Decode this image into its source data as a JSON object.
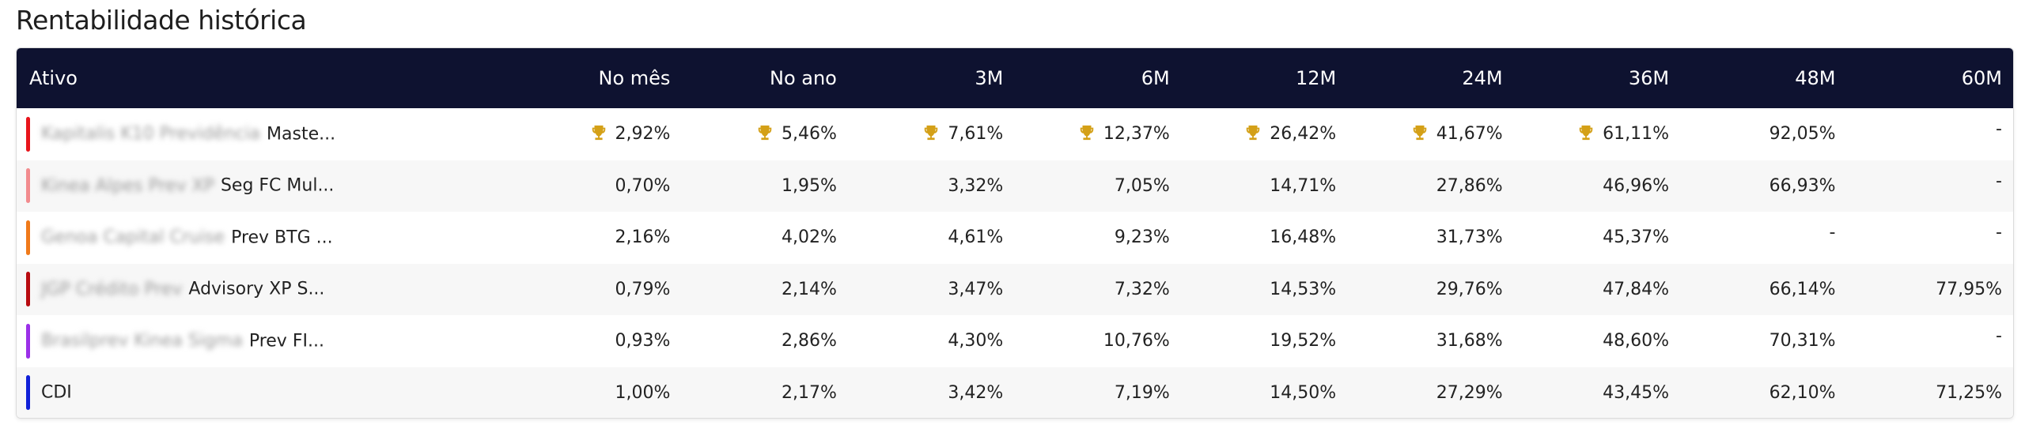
{
  "page": {
    "title": "Rentabilidade histórica"
  },
  "table": {
    "headers": [
      "Ativo",
      "No mês",
      "No ano",
      "3M",
      "6M",
      "12M",
      "24M",
      "36M",
      "48M",
      "60M"
    ],
    "rows": [
      {
        "color": "#e8141b",
        "blurred": "Kapitalis K10 Previdência",
        "name": "Maste...",
        "values": [
          "2,92%",
          "5,46%",
          "7,61%",
          "12,37%",
          "26,42%",
          "41,67%",
          "61,11%",
          "92,05%",
          "-"
        ],
        "trophies": [
          true,
          true,
          true,
          true,
          true,
          true,
          true,
          false,
          false
        ]
      },
      {
        "color": "#f28b8e",
        "blurred": "Kinea Alpes Prev XP",
        "name": "Seg FC Mul...",
        "values": [
          "0,70%",
          "1,95%",
          "3,32%",
          "7,05%",
          "14,71%",
          "27,86%",
          "46,96%",
          "66,93%",
          "-"
        ],
        "trophies": [
          false,
          false,
          false,
          false,
          false,
          false,
          false,
          false,
          false
        ]
      },
      {
        "color": "#f07a1a",
        "blurred": "Genoa Capital Cruise",
        "name": "Prev BTG ...",
        "values": [
          "2,16%",
          "4,02%",
          "4,61%",
          "9,23%",
          "16,48%",
          "31,73%",
          "45,37%",
          "-",
          "-"
        ],
        "trophies": [
          false,
          false,
          false,
          false,
          false,
          false,
          false,
          false,
          false
        ]
      },
      {
        "color": "#b80b10",
        "blurred": "JGP Crédito Prev",
        "name": "Advisory XP S...",
        "values": [
          "0,79%",
          "2,14%",
          "3,47%",
          "7,32%",
          "14,53%",
          "29,76%",
          "47,84%",
          "66,14%",
          "77,95%"
        ],
        "trophies": [
          false,
          false,
          false,
          false,
          false,
          false,
          false,
          false,
          false
        ]
      },
      {
        "color": "#9b30e8",
        "blurred": "Brasilprev Kinea Sigma",
        "name": "Prev FI...",
        "values": [
          "0,93%",
          "2,86%",
          "4,30%",
          "10,76%",
          "19,52%",
          "31,68%",
          "48,60%",
          "70,31%",
          "-"
        ],
        "trophies": [
          false,
          false,
          false,
          false,
          false,
          false,
          false,
          false,
          false
        ]
      },
      {
        "color": "#1020d8",
        "blurred": "",
        "name": "CDI",
        "values": [
          "1,00%",
          "2,17%",
          "3,42%",
          "7,19%",
          "14,50%",
          "27,29%",
          "43,45%",
          "62,10%",
          "71,25%"
        ],
        "trophies": [
          false,
          false,
          false,
          false,
          false,
          false,
          false,
          false,
          false
        ]
      }
    ]
  },
  "icons": {
    "trophy": "trophy-icon",
    "trophy_color": "#d4a017"
  }
}
